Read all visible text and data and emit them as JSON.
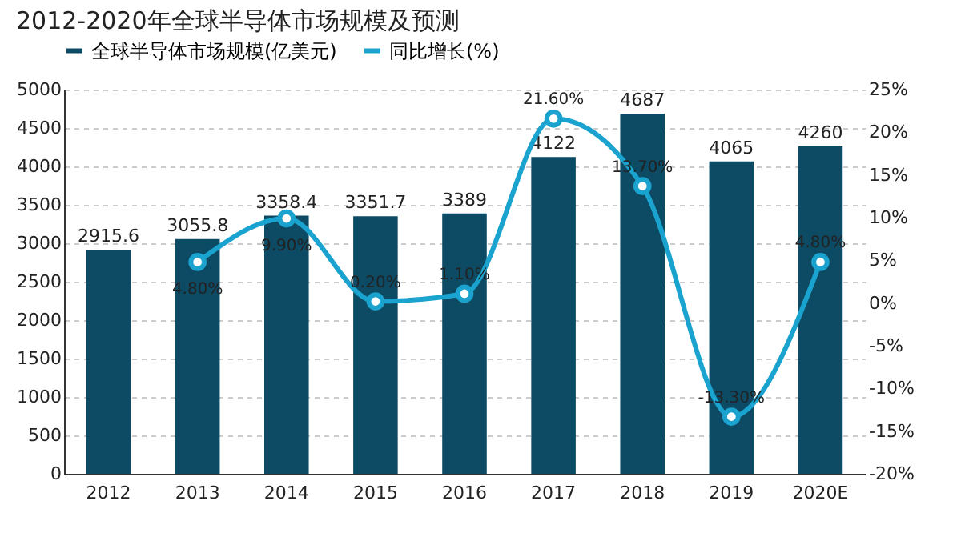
{
  "chart_data": {
    "type": "bar",
    "title": "2012-2020年全球半导体市场规模及预测",
    "categories": [
      "2012",
      "2013",
      "2014",
      "2015",
      "2016",
      "2017",
      "2018",
      "2019",
      "2020E"
    ],
    "series": [
      {
        "name": "全球半导体市场规模(亿美元)",
        "color": "#0d4a63",
        "values": [
          2915.6,
          3055.8,
          3358.4,
          3351.7,
          3389,
          4122,
          4687,
          4065,
          4260
        ],
        "value_labels": [
          "2915.6",
          "3055.8",
          "3358.4",
          "3351.7",
          "3389",
          "4122",
          "4687",
          "4065",
          "4260"
        ]
      },
      {
        "name": "同比增长(%)",
        "type": "line",
        "axis": "y2",
        "color": "#1aa3cf",
        "values": [
          null,
          4.8,
          9.9,
          0.2,
          1.1,
          21.6,
          13.7,
          -13.3,
          4.8
        ],
        "value_labels": [
          null,
          "4.80%",
          "9.90%",
          "0.20%",
          "1.10%",
          "21.60%",
          "13.70%",
          "-13.30%",
          "4.80%"
        ]
      }
    ],
    "ylim": [
      0,
      5000
    ],
    "yticks": [
      0,
      500,
      1000,
      1500,
      2000,
      2500,
      3000,
      3500,
      4000,
      4500,
      5000
    ],
    "y2lim": [
      -20,
      25
    ],
    "y2ticks": [
      {
        "value": -20,
        "label": "-20%"
      },
      {
        "value": -15,
        "label": "-15%"
      },
      {
        "value": -10,
        "label": "-10%"
      },
      {
        "value": -5,
        "label": "-5%"
      },
      {
        "value": 0,
        "label": "0%"
      },
      {
        "value": 5,
        "label": "5%"
      },
      {
        "value": 10,
        "label": "10%"
      },
      {
        "value": 15,
        "label": "15%"
      },
      {
        "value": 20,
        "label": "20%"
      },
      {
        "value": 25,
        "label": "25%"
      }
    ],
    "grid": "y",
    "legend": "top left",
    "marker": "circle",
    "line_style": "solid"
  }
}
